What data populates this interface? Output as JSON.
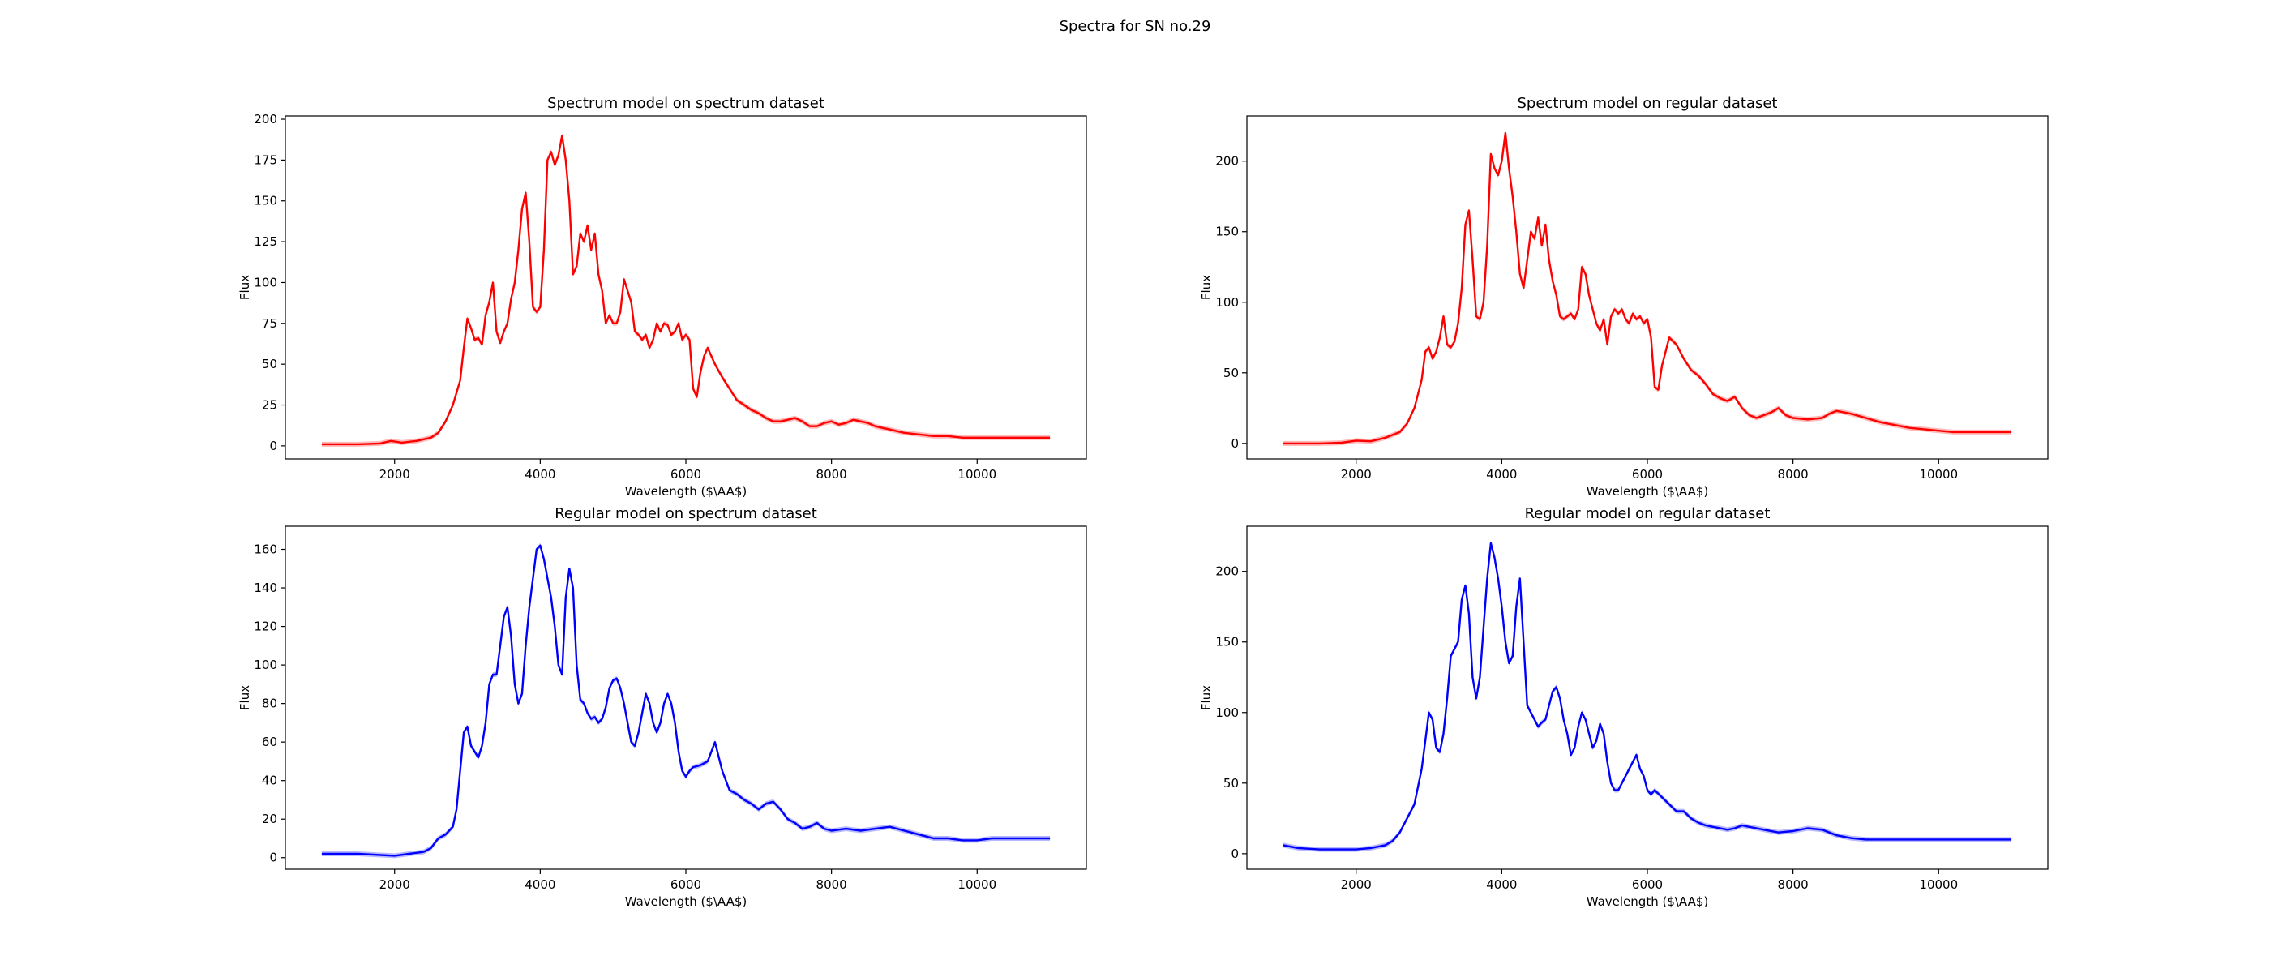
{
  "figure": {
    "suptitle": "Spectra for SN no.29"
  },
  "chart_data": [
    {
      "type": "line",
      "title": "Spectrum model on spectrum dataset",
      "xlabel": "Wavelength ($\\AA$)",
      "ylabel": "Flux",
      "xlim": [
        500,
        11500
      ],
      "ylim": [
        -8,
        202
      ],
      "xticks": [
        2000,
        4000,
        6000,
        8000,
        10000
      ],
      "yticks": [
        0,
        25,
        50,
        75,
        100,
        125,
        150,
        175,
        200
      ],
      "grid": false,
      "color": "#ff0000",
      "band_color": "#ff8080",
      "series": [
        {
          "x": [
            1000,
            1500,
            1800,
            1950,
            2100,
            2300,
            2500,
            2600,
            2700,
            2800,
            2900,
            2950,
            3000,
            3050,
            3100,
            3150,
            3200,
            3250,
            3300,
            3350,
            3400,
            3450,
            3500,
            3550,
            3600,
            3650,
            3700,
            3750,
            3800,
            3850,
            3900,
            3950,
            4000,
            4050,
            4100,
            4150,
            4200,
            4250,
            4300,
            4350,
            4400,
            4450,
            4500,
            4550,
            4600,
            4650,
            4700,
            4750,
            4800,
            4850,
            4900,
            4950,
            5000,
            5050,
            5100,
            5150,
            5200,
            5250,
            5300,
            5350,
            5400,
            5450,
            5500,
            5550,
            5600,
            5650,
            5700,
            5750,
            5800,
            5850,
            5900,
            5950,
            6000,
            6050,
            6100,
            6150,
            6200,
            6250,
            6300,
            6400,
            6500,
            6600,
            6700,
            6800,
            6900,
            7000,
            7100,
            7200,
            7300,
            7400,
            7500,
            7600,
            7700,
            7800,
            7900,
            8000,
            8100,
            8200,
            8300,
            8400,
            8500,
            8600,
            8700,
            8800,
            8900,
            9000,
            9200,
            9400,
            9600,
            9800,
            10000,
            10200,
            10400,
            10600,
            10800,
            11000
          ],
          "y": [
            1,
            1,
            1.5,
            3,
            2,
            3,
            5,
            8,
            15,
            25,
            40,
            60,
            78,
            72,
            65,
            66,
            62,
            80,
            88,
            100,
            70,
            63,
            70,
            75,
            90,
            100,
            120,
            145,
            155,
            125,
            85,
            82,
            85,
            120,
            175,
            180,
            172,
            178,
            190,
            175,
            150,
            105,
            110,
            130,
            125,
            135,
            120,
            130,
            105,
            95,
            75,
            80,
            75,
            75,
            82,
            102,
            95,
            88,
            70,
            68,
            65,
            68,
            60,
            65,
            75,
            70,
            75,
            74,
            68,
            70,
            75,
            65,
            68,
            65,
            35,
            30,
            45,
            55,
            60,
            50,
            42,
            35,
            28,
            25,
            22,
            20,
            17,
            15,
            15,
            16,
            17,
            15,
            12,
            12,
            14,
            15,
            13,
            14,
            16,
            15,
            14,
            12,
            11,
            10,
            9,
            8,
            7,
            6,
            6,
            5,
            5,
            5,
            5,
            5,
            5,
            5
          ]
        }
      ]
    },
    {
      "type": "line",
      "title": "Spectrum model on regular dataset",
      "xlabel": "Wavelength ($\\AA$)",
      "ylabel": "Flux",
      "xlim": [
        500,
        11500
      ],
      "ylim": [
        -11,
        232
      ],
      "xticks": [
        2000,
        4000,
        6000,
        8000,
        10000
      ],
      "yticks": [
        0,
        50,
        100,
        150,
        200
      ],
      "grid": false,
      "color": "#ff0000",
      "band_color": "#ff8080",
      "series": [
        {
          "x": [
            1000,
            1500,
            1800,
            2000,
            2200,
            2400,
            2600,
            2700,
            2800,
            2900,
            2950,
            3000,
            3050,
            3100,
            3150,
            3200,
            3250,
            3300,
            3350,
            3400,
            3450,
            3500,
            3550,
            3600,
            3650,
            3700,
            3750,
            3800,
            3850,
            3900,
            3950,
            4000,
            4050,
            4100,
            4150,
            4200,
            4250,
            4300,
            4350,
            4400,
            4450,
            4500,
            4550,
            4600,
            4650,
            4700,
            4750,
            4800,
            4850,
            4900,
            4950,
            5000,
            5050,
            5100,
            5150,
            5200,
            5250,
            5300,
            5350,
            5400,
            5450,
            5500,
            5550,
            5600,
            5650,
            5700,
            5750,
            5800,
            5850,
            5900,
            5950,
            6000,
            6050,
            6100,
            6150,
            6200,
            6250,
            6300,
            6400,
            6500,
            6600,
            6700,
            6800,
            6900,
            7000,
            7100,
            7200,
            7300,
            7400,
            7500,
            7600,
            7700,
            7800,
            7900,
            8000,
            8200,
            8400,
            8500,
            8600,
            8800,
            9000,
            9200,
            9400,
            9600,
            9800,
            10000,
            10200,
            10400,
            10600,
            10800,
            11000
          ],
          "y": [
            0,
            0,
            0.5,
            2,
            1.5,
            4,
            8,
            14,
            25,
            45,
            65,
            68,
            60,
            65,
            75,
            90,
            70,
            68,
            72,
            85,
            110,
            155,
            165,
            130,
            90,
            88,
            100,
            140,
            205,
            195,
            190,
            200,
            220,
            195,
            175,
            150,
            120,
            110,
            130,
            150,
            145,
            160,
            140,
            155,
            130,
            115,
            105,
            90,
            88,
            90,
            92,
            88,
            95,
            125,
            120,
            105,
            95,
            85,
            80,
            88,
            70,
            90,
            95,
            92,
            95,
            88,
            85,
            92,
            88,
            90,
            85,
            88,
            75,
            40,
            38,
            55,
            65,
            75,
            70,
            60,
            52,
            48,
            42,
            35,
            32,
            30,
            33,
            25,
            20,
            18,
            20,
            22,
            25,
            20,
            18,
            17,
            18,
            21,
            23,
            21,
            18,
            15,
            13,
            11,
            10,
            9,
            8,
            8,
            8,
            8,
            8
          ]
        }
      ]
    },
    {
      "type": "line",
      "title": "Regular model on spectrum dataset",
      "xlabel": "Wavelength ($\\AA$)",
      "ylabel": "Flux",
      "xlim": [
        500,
        11500
      ],
      "ylim": [
        -6,
        172
      ],
      "xticks": [
        2000,
        4000,
        6000,
        8000,
        10000
      ],
      "yticks": [
        0,
        20,
        40,
        60,
        80,
        100,
        120,
        140,
        160
      ],
      "grid": false,
      "color": "#0000ff",
      "band_color": "#8080ff",
      "series": [
        {
          "x": [
            1000,
            1500,
            2000,
            2200,
            2400,
            2500,
            2600,
            2700,
            2800,
            2850,
            2900,
            2950,
            3000,
            3050,
            3100,
            3150,
            3200,
            3250,
            3300,
            3350,
            3400,
            3450,
            3500,
            3550,
            3600,
            3650,
            3700,
            3750,
            3800,
            3850,
            3900,
            3950,
            4000,
            4050,
            4100,
            4150,
            4200,
            4250,
            4300,
            4350,
            4400,
            4450,
            4500,
            4550,
            4600,
            4650,
            4700,
            4750,
            4800,
            4850,
            4900,
            4950,
            5000,
            5050,
            5100,
            5150,
            5200,
            5250,
            5300,
            5350,
            5400,
            5450,
            5500,
            5550,
            5600,
            5650,
            5700,
            5750,
            5800,
            5850,
            5900,
            5950,
            6000,
            6050,
            6100,
            6200,
            6300,
            6400,
            6500,
            6600,
            6700,
            6800,
            6900,
            7000,
            7100,
            7200,
            7300,
            7400,
            7500,
            7600,
            7700,
            7800,
            7900,
            8000,
            8200,
            8400,
            8600,
            8800,
            9000,
            9200,
            9400,
            9600,
            9800,
            10000,
            10200,
            10400,
            10600,
            10800,
            11000
          ],
          "y": [
            2,
            2,
            1,
            2,
            3,
            5,
            10,
            12,
            16,
            25,
            45,
            65,
            68,
            58,
            55,
            52,
            58,
            70,
            90,
            95,
            95,
            110,
            125,
            130,
            115,
            90,
            80,
            85,
            110,
            130,
            145,
            160,
            162,
            155,
            145,
            135,
            120,
            100,
            95,
            135,
            150,
            140,
            100,
            82,
            80,
            75,
            72,
            73,
            70,
            72,
            78,
            88,
            92,
            93,
            88,
            80,
            70,
            60,
            58,
            65,
            75,
            85,
            80,
            70,
            65,
            70,
            80,
            85,
            80,
            70,
            55,
            45,
            42,
            45,
            47,
            48,
            50,
            60,
            45,
            35,
            33,
            30,
            28,
            25,
            28,
            29,
            25,
            20,
            18,
            15,
            16,
            18,
            15,
            14,
            15,
            14,
            15,
            16,
            14,
            12,
            10,
            10,
            9,
            9,
            10,
            10,
            10,
            10,
            10
          ]
        }
      ]
    },
    {
      "type": "line",
      "title": "Regular model on regular dataset",
      "xlabel": "Wavelength ($\\AA$)",
      "ylabel": "Flux",
      "xlim": [
        500,
        11500
      ],
      "ylim": [
        -11,
        232
      ],
      "xticks": [
        2000,
        4000,
        6000,
        8000,
        10000
      ],
      "yticks": [
        0,
        50,
        100,
        150,
        200
      ],
      "grid": false,
      "color": "#0000ff",
      "band_color": "#8080ff",
      "series": [
        {
          "x": [
            1000,
            1200,
            1500,
            1800,
            2000,
            2200,
            2400,
            2500,
            2600,
            2700,
            2800,
            2900,
            2950,
            3000,
            3050,
            3100,
            3150,
            3200,
            3250,
            3300,
            3350,
            3400,
            3450,
            3500,
            3550,
            3600,
            3650,
            3700,
            3750,
            3800,
            3850,
            3900,
            3950,
            4000,
            4050,
            4100,
            4150,
            4200,
            4250,
            4300,
            4350,
            4400,
            4450,
            4500,
            4550,
            4600,
            4650,
            4700,
            4750,
            4800,
            4850,
            4900,
            4950,
            5000,
            5050,
            5100,
            5150,
            5200,
            5250,
            5300,
            5350,
            5400,
            5450,
            5500,
            5550,
            5600,
            5650,
            5700,
            5750,
            5800,
            5850,
            5900,
            5950,
            6000,
            6050,
            6100,
            6200,
            6300,
            6400,
            6500,
            6600,
            6700,
            6800,
            6900,
            7000,
            7100,
            7200,
            7300,
            7400,
            7500,
            7600,
            7800,
            8000,
            8200,
            8400,
            8500,
            8600,
            8800,
            9000,
            9200,
            9400,
            9600,
            9800,
            10000,
            10200,
            10400,
            10600,
            10800,
            11000
          ],
          "y": [
            6,
            4,
            3,
            3,
            3,
            4,
            6,
            9,
            15,
            25,
            35,
            60,
            80,
            100,
            95,
            75,
            72,
            85,
            110,
            140,
            145,
            150,
            180,
            190,
            170,
            125,
            110,
            125,
            160,
            195,
            220,
            210,
            195,
            175,
            150,
            135,
            140,
            175,
            195,
            150,
            105,
            100,
            95,
            90,
            93,
            95,
            105,
            115,
            118,
            110,
            95,
            85,
            70,
            75,
            90,
            100,
            95,
            85,
            75,
            80,
            92,
            85,
            65,
            50,
            45,
            45,
            50,
            55,
            60,
            65,
            70,
            60,
            55,
            45,
            42,
            45,
            40,
            35,
            30,
            30,
            25,
            22,
            20,
            19,
            18,
            17,
            18,
            20,
            19,
            18,
            17,
            15,
            16,
            18,
            17,
            15,
            13,
            11,
            10,
            10,
            10,
            10,
            10,
            10,
            10,
            10,
            10,
            10,
            10
          ]
        }
      ]
    }
  ]
}
